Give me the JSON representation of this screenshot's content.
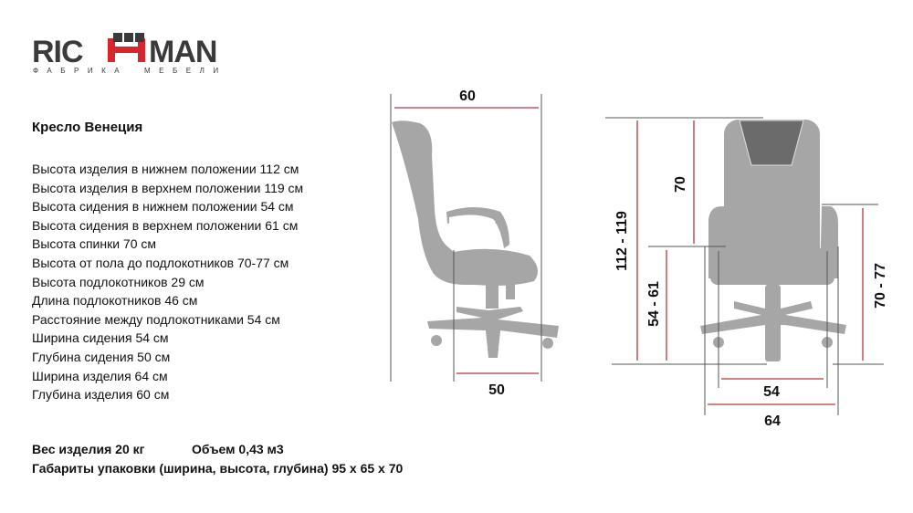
{
  "logo": {
    "brand": "RICHMAN",
    "tagline": "ФАБРИКА МЕБЕЛИ",
    "colors": {
      "dark": "#3a3a3a",
      "accent": "#d7262e"
    }
  },
  "product": {
    "title": "Кресло Венеция",
    "specs": [
      "Высота изделия в нижнем положении 112 см",
      "Высота изделия в верхнем положении 119 см",
      "Высота сидения в нижнем положении 54 см",
      "Высота сидения в верхнем положении 61 см",
      "Высота спинки 70 см",
      "Высота от пола до подлокотников 70-77 см",
      "Высота подлокотников 29 см",
      "Длина подлокотников 46 см",
      "Расстояние между подлокотниками 54 см",
      "Ширина сидения 54 см",
      "Глубина сидения 50 см",
      "Ширина изделия 64 см",
      "Глубина изделия 60 см"
    ],
    "weight": "Вес изделия 20 кг",
    "volume": "Объем 0,43 м3",
    "packaging": "Габариты упаковки (ширина, высота, глубина)  95 x 65 x 70"
  },
  "diagram": {
    "side": {
      "depth": "60",
      "seat_depth": "50"
    },
    "front": {
      "total_height": "112 - 119",
      "back_height": "70",
      "seat_height": "54 - 61",
      "armrest_height": "70 - 77",
      "seat_width": "54",
      "total_width": "64"
    },
    "colors": {
      "chair": "#a6a6a6",
      "headrest": "#6b6b6b",
      "dim_line": "#b03a3a",
      "ext_line": "#555555"
    }
  }
}
